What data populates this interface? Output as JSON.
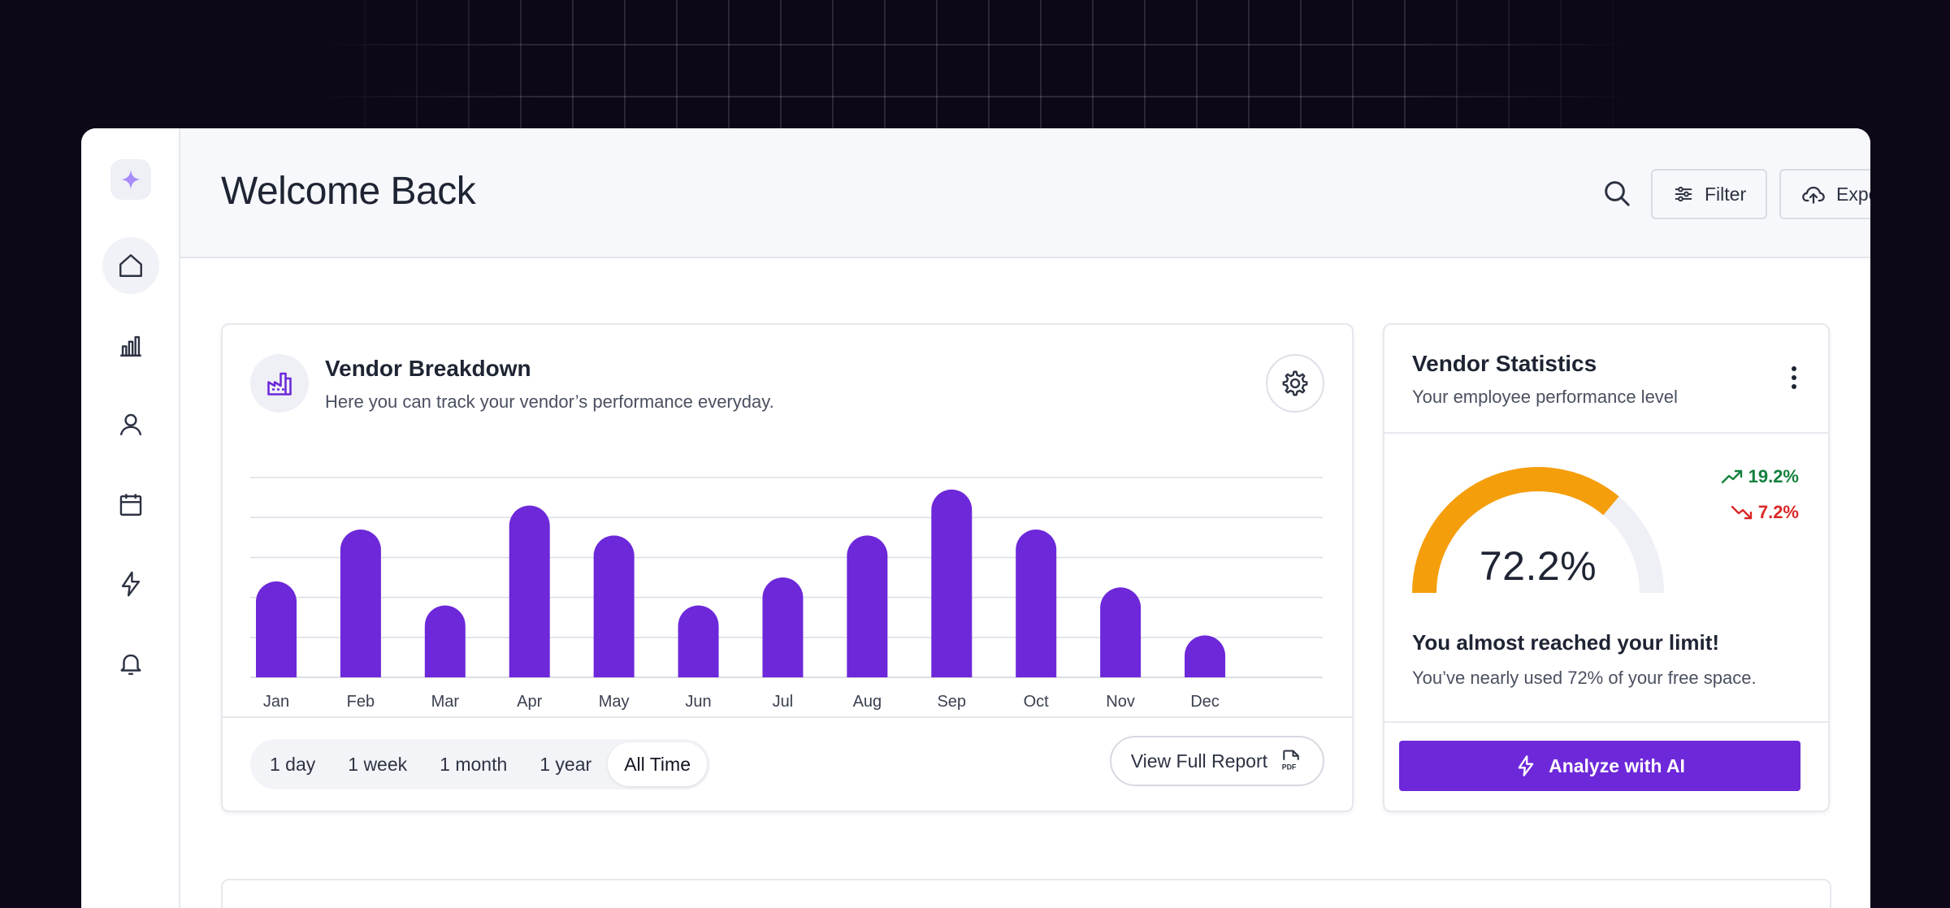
{
  "header": {
    "title": "Welcome Back",
    "filter_label": "Filter",
    "export_label": "Export"
  },
  "sidebar": {
    "items": [
      {
        "icon": "home-icon",
        "active": true
      },
      {
        "icon": "bar-chart-icon"
      },
      {
        "icon": "user-icon"
      },
      {
        "icon": "calendar-icon"
      },
      {
        "icon": "lightning-icon"
      },
      {
        "icon": "bell-icon"
      }
    ]
  },
  "breakdown": {
    "title": "Vendor Breakdown",
    "subtitle": "Here you can track your vendor’s performance everyday.",
    "ranges": [
      "1 day",
      "1 week",
      "1 month",
      "1 year",
      "All Time"
    ],
    "active_range": "All Time",
    "report_label": "View Full Report"
  },
  "chart_data": {
    "type": "bar",
    "categories": [
      "Jan",
      "Feb",
      "Mar",
      "Apr",
      "May",
      "Jun",
      "Jul",
      "Aug",
      "Sep",
      "Oct",
      "Nov",
      "Dec"
    ],
    "values": [
      2.4,
      3.7,
      1.8,
      4.3,
      3.55,
      1.8,
      2.5,
      3.55,
      4.7,
      3.7,
      2.25,
      1.05
    ],
    "ylim": [
      0,
      5
    ],
    "grid": true,
    "bar_color": "#6d28d9",
    "title": "",
    "xlabel": "",
    "ylabel": ""
  },
  "stats": {
    "title": "Vendor Statistics",
    "subtitle": "Your employee performance level",
    "gauge_value": 72.2,
    "gauge_label": "72.2%",
    "trend_up": "19.2%",
    "trend_down": "7.2%",
    "limit_title": "You almost reached your limit!",
    "limit_text": "You’ve nearly used 72% of your free space.",
    "ai_button": "Analyze with AI",
    "colors": {
      "gauge_fill": "#f59e0b",
      "gauge_track": "#eef0f5",
      "up": "#15803d",
      "down": "#dc2626",
      "accent": "#6d28d9"
    }
  }
}
